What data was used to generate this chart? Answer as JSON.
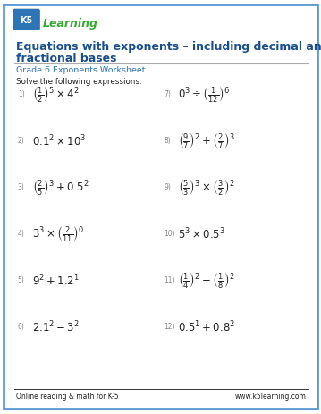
{
  "title_line1": "Equations with exponents – including decimal and",
  "title_line2": "fractional bases",
  "subtitle": "Grade 6 Exponents Worksheet",
  "instruction": "Solve the following expressions.",
  "bg_color": "#ffffff",
  "border_color": "#5b9bd5",
  "title_color": "#1a4f8a",
  "subtitle_color": "#2e75b6",
  "text_color": "#222222",
  "num_color": "#888888",
  "footer_left": "Online reading & math for K-5",
  "footer_right": "www.k5learning.com",
  "logo_k5_color": "#2e75b6",
  "logo_text_color": "#3aaa35"
}
